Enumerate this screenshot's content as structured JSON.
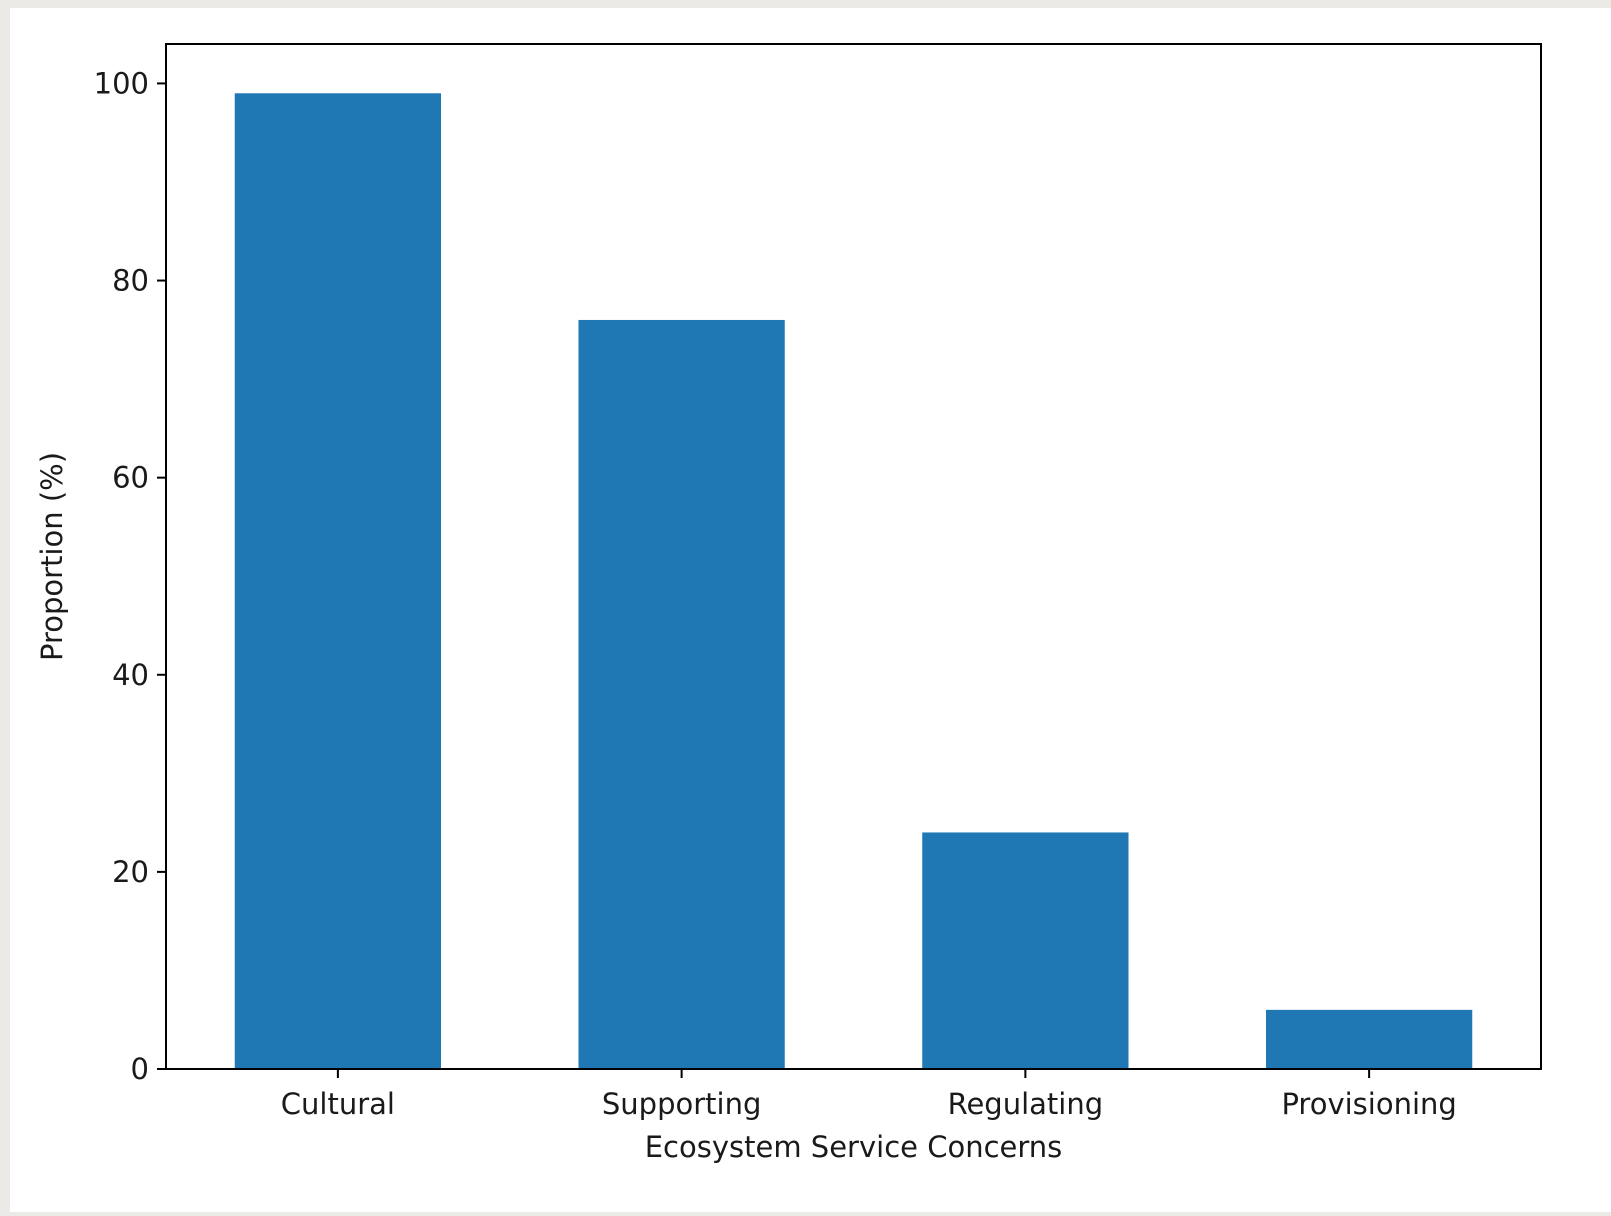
{
  "chart_data": {
    "type": "bar",
    "categories": [
      "Cultural",
      "Supporting",
      "Regulating",
      "Provisioning"
    ],
    "values": [
      99,
      76,
      24,
      6
    ],
    "title": "",
    "xlabel": "Ecosystem Service Concerns",
    "ylabel": "Proportion (%)",
    "ylim": [
      0,
      104
    ],
    "yticks": [
      0,
      20,
      40,
      60,
      80,
      100
    ],
    "grid": false,
    "colors": {
      "bar": "#1f77b4",
      "axis": "#000000",
      "background": "#ffffff",
      "page": "#ebeae6"
    }
  }
}
